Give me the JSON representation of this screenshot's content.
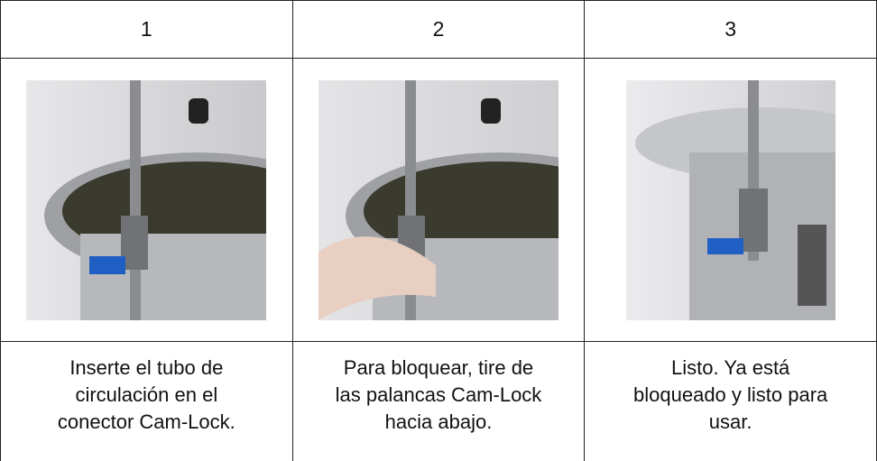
{
  "table": {
    "header": [
      "1",
      "2",
      "3"
    ],
    "captions": [
      [
        "Inserte el tubo de",
        "circulación en el",
        "conector Cam-Lock."
      ],
      [
        "Para bloquear, tire de",
        "las palancas Cam-Lock",
        "hacia abajo."
      ],
      [
        "Listo. Ya está",
        "bloqueado y listo para",
        "usar."
      ]
    ]
  }
}
